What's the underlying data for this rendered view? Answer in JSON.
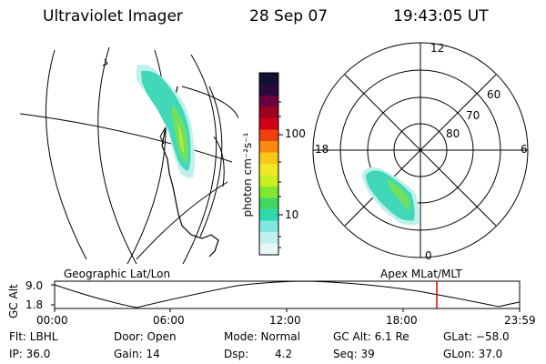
{
  "header": {
    "instrument": "Ultraviolet Imager",
    "date": "28 Sep 07",
    "time": "19:43:05 UT"
  },
  "colorbar": {
    "label": "photon cm⁻²s⁻¹",
    "ticks": [
      "100",
      "10"
    ],
    "colors": [
      "#101030",
      "#2a0a3c",
      "#6a0040",
      "#a00020",
      "#d00018",
      "#f04010",
      "#f88a10",
      "#f8c818",
      "#f0e820",
      "#c8f020",
      "#80e830",
      "#40d860",
      "#30d8b0",
      "#80e8e0",
      "#c0f0f0",
      "#e8f8f8"
    ]
  },
  "polar": {
    "lat_labels": [
      "60",
      "70",
      "80"
    ],
    "mlt_labels": {
      "top": "12",
      "left": "18",
      "right": "6",
      "bottom": "0"
    }
  },
  "map_labels": {
    "left": "Geographic Lat/Lon",
    "right": "Apex MLat/MLT"
  },
  "altitude_plot": {
    "ylabel": "GC Alt",
    "yticks": [
      "9.0",
      "1.8"
    ],
    "xticks": [
      "00:00",
      "06:00",
      "12:00",
      "18:00",
      "23:59"
    ]
  },
  "info": {
    "flt": "Flt: LBHL",
    "ip": "IP: 36.0",
    "door": "Door: Open",
    "gain": "Gain: 14",
    "mode": "Mode: Normal",
    "dsp_label": "Dsp:",
    "dsp_value": "4.2",
    "gc_alt": "GC Alt: 6.1 Re",
    "seq": "Seq: 39",
    "glat": "GLat: −58.0",
    "glon": "GLon: 37.0"
  }
}
